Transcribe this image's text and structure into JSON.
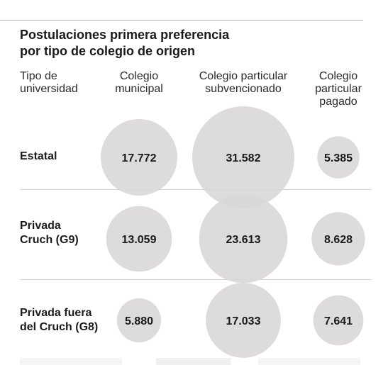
{
  "chart_data": {
    "type": "bubble_table",
    "title_lines": [
      "Postulaciones primera preferencia",
      "por tipo de colegio de origen"
    ],
    "row_header": "Tipo de\nuniversidad",
    "columns": [
      "Colegio\nmunicipal",
      "Colegio particular\nsubvencionado",
      "Colegio\nparticular\npagado"
    ],
    "rows": [
      "Estatal",
      "Privada\nCruch (G9)",
      "Privada fuera\ndel Cruch (G8)"
    ],
    "values": [
      [
        17772,
        31582,
        5385
      ],
      [
        13059,
        23613,
        8628
      ],
      [
        5880,
        17033,
        7641
      ]
    ],
    "value_labels": [
      [
        "17.772",
        "31.582",
        "5.385"
      ],
      [
        "13.059",
        "23.613",
        "8.628"
      ],
      [
        "5.880",
        "17.033",
        "7.641"
      ]
    ],
    "bubble_color": "#d9d7d5",
    "bubble_color_overlap": "#cbc9c7"
  }
}
